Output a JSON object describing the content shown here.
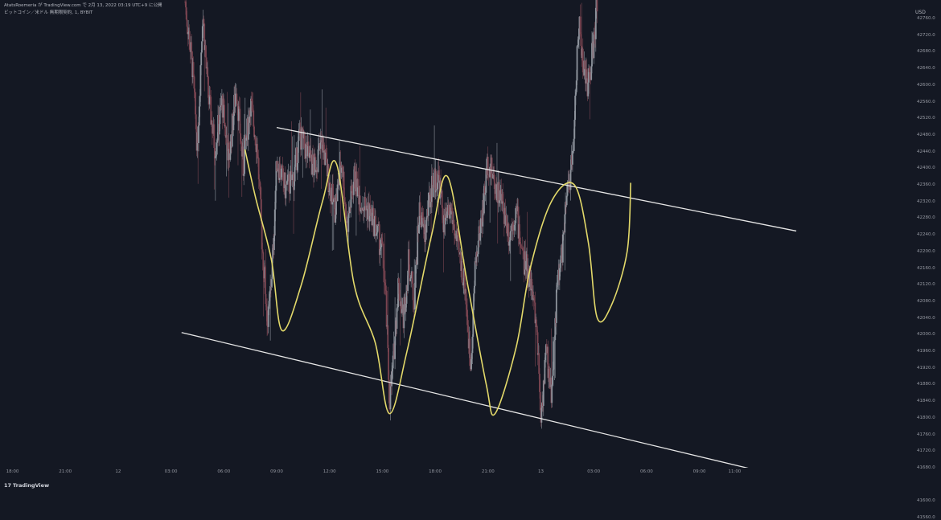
{
  "header": {
    "title_line": "AtatsRoemeria が TradingView.com で 2月 13, 2022 03:19 UTC+9 に公開",
    "symbol_line": "ビットコイン／米ドル 無期限契約, 1, BYBIT"
  },
  "price_unit": "USD",
  "footer": {
    "logo_mark": "17",
    "logo_text": "TradingView"
  },
  "colors": {
    "background": "#141823",
    "up_candle": "#8d939c",
    "down_candle": "#7a4450",
    "trend_line": "#e6e6e6",
    "drawing": "#e3d96a"
  },
  "chart_data": {
    "type": "candlestick",
    "symbol": "BTCUSD perpetual",
    "interval": "1",
    "exchange": "BYBIT",
    "ylim": [
      41540,
      42800
    ],
    "yticks": [
      42760,
      42720,
      42680,
      42640,
      42600,
      42560,
      42520,
      42480,
      42440,
      42400,
      42360,
      42320,
      42280,
      42240,
      42200,
      42160,
      42120,
      42080,
      42040,
      42000,
      41960,
      41920,
      41880,
      41840,
      41800,
      41760,
      41720,
      41680,
      41640,
      41600,
      41560
    ],
    "ytick_labels": [
      "42760.0",
      "42720.0",
      "42680.0",
      "42640.0",
      "42600.0",
      "42560.0",
      "42520.0",
      "42480.0",
      "42440.0",
      "42400.0",
      "42360.0",
      "42320.0",
      "42280.0",
      "42240.0",
      "42200.0",
      "42160.0",
      "42120.0",
      "42080.0",
      "42040.0",
      "42000.0",
      "41960.0",
      "41920.0",
      "41880.0",
      "41840.0",
      "41800.0",
      "41760.0",
      "41720.0",
      "41680.0",
      "41640.0",
      "41600.0",
      "41560.0"
    ],
    "x_ticks": [
      {
        "label": "18:00",
        "t": -15
      },
      {
        "label": "21:00",
        "t": -12
      },
      {
        "label": "12",
        "t": -9
      },
      {
        "label": "03:00",
        "t": -6
      },
      {
        "label": "06:00",
        "t": -3
      },
      {
        "label": "09:00",
        "t": 0
      },
      {
        "label": "12:00",
        "t": 3
      },
      {
        "label": "15:00",
        "t": 6
      },
      {
        "label": "18:00",
        "t": 9
      },
      {
        "label": "21:00",
        "t": 12
      },
      {
        "label": "13",
        "t": 15
      },
      {
        "label": "03:00",
        "t": 18
      },
      {
        "label": "06:00",
        "t": 21
      },
      {
        "label": "09:00",
        "t": 24
      },
      {
        "label": "11:00",
        "t": 26
      }
    ],
    "x_axis_note": "t = hours after 12日 09:00",
    "price_path": [
      {
        "t": -5.2,
        "p": 42800
      },
      {
        "t": -4.8,
        "p": 42650
      },
      {
        "t": -4.5,
        "p": 42450
      },
      {
        "t": -4.2,
        "p": 42780
      },
      {
        "t": -3.9,
        "p": 42580
      },
      {
        "t": -3.5,
        "p": 42450
      },
      {
        "t": -3.1,
        "p": 42560
      },
      {
        "t": -2.7,
        "p": 42420
      },
      {
        "t": -2.3,
        "p": 42600
      },
      {
        "t": -1.9,
        "p": 42400
      },
      {
        "t": -1.5,
        "p": 42560
      },
      {
        "t": -1.1,
        "p": 42450
      },
      {
        "t": -0.8,
        "p": 42200
      },
      {
        "t": -0.5,
        "p": 42020
      },
      {
        "t": -0.2,
        "p": 42200
      },
      {
        "t": 0.0,
        "p": 42420
      },
      {
        "t": 0.5,
        "p": 42350
      },
      {
        "t": 1.0,
        "p": 42380
      },
      {
        "t": 1.3,
        "p": 42480
      },
      {
        "t": 1.7,
        "p": 42440
      },
      {
        "t": 2.1,
        "p": 42400
      },
      {
        "t": 2.6,
        "p": 42460
      },
      {
        "t": 3.0,
        "p": 42360
      },
      {
        "t": 3.3,
        "p": 42300
      },
      {
        "t": 3.7,
        "p": 42420
      },
      {
        "t": 4.0,
        "p": 42260
      },
      {
        "t": 4.4,
        "p": 42380
      },
      {
        "t": 4.8,
        "p": 42320
      },
      {
        "t": 5.2,
        "p": 42300
      },
      {
        "t": 5.6,
        "p": 42260
      },
      {
        "t": 6.0,
        "p": 42200
      },
      {
        "t": 6.2,
        "p": 42080
      },
      {
        "t": 6.4,
        "p": 41840
      },
      {
        "t": 6.6,
        "p": 41920
      },
      {
        "t": 6.9,
        "p": 42120
      },
      {
        "t": 7.2,
        "p": 42040
      },
      {
        "t": 7.5,
        "p": 42180
      },
      {
        "t": 7.8,
        "p": 42080
      },
      {
        "t": 8.1,
        "p": 42300
      },
      {
        "t": 8.4,
        "p": 42240
      },
      {
        "t": 8.8,
        "p": 42360
      },
      {
        "t": 9.2,
        "p": 42380
      },
      {
        "t": 9.5,
        "p": 42260
      },
      {
        "t": 9.9,
        "p": 42300
      },
      {
        "t": 10.3,
        "p": 42200
      },
      {
        "t": 10.7,
        "p": 42120
      },
      {
        "t": 11.0,
        "p": 41920
      },
      {
        "t": 11.3,
        "p": 42180
      },
      {
        "t": 11.7,
        "p": 42300
      },
      {
        "t": 12.0,
        "p": 42420
      },
      {
        "t": 12.4,
        "p": 42360
      },
      {
        "t": 12.8,
        "p": 42320
      },
      {
        "t": 13.2,
        "p": 42240
      },
      {
        "t": 13.6,
        "p": 42300
      },
      {
        "t": 14.0,
        "p": 42180
      },
      {
        "t": 14.4,
        "p": 42140
      },
      {
        "t": 14.8,
        "p": 42000
      },
      {
        "t": 15.0,
        "p": 41800
      },
      {
        "t": 15.3,
        "p": 41960
      },
      {
        "t": 15.6,
        "p": 41860
      },
      {
        "t": 15.9,
        "p": 42100
      },
      {
        "t": 16.2,
        "p": 42200
      },
      {
        "t": 16.5,
        "p": 42340
      },
      {
        "t": 16.8,
        "p": 42420
      },
      {
        "t": 17.0,
        "p": 42620
      },
      {
        "t": 17.2,
        "p": 42760
      },
      {
        "t": 17.4,
        "p": 42640
      },
      {
        "t": 17.7,
        "p": 42600
      },
      {
        "t": 18.0,
        "p": 42700
      },
      {
        "t": 18.2,
        "p": 42800
      }
    ],
    "upper_trend_line": {
      "t0": 0.0,
      "p0": 42498,
      "t1": 29.5,
      "p1": 42249
    },
    "lower_trend_line": {
      "t0": -5.4,
      "p0": 42005,
      "t1": 29.5,
      "p1": 41651
    },
    "drawn_path": [
      {
        "t": -1.8,
        "p": 42445
      },
      {
        "t": -1.2,
        "p": 42330
      },
      {
        "t": -0.3,
        "p": 42180
      },
      {
        "t": 0.3,
        "p": 42010
      },
      {
        "t": 1.4,
        "p": 42120
      },
      {
        "t": 2.6,
        "p": 42320
      },
      {
        "t": 3.4,
        "p": 42410
      },
      {
        "t": 4.4,
        "p": 42120
      },
      {
        "t": 5.6,
        "p": 41980
      },
      {
        "t": 6.4,
        "p": 41810
      },
      {
        "t": 7.4,
        "p": 41960
      },
      {
        "t": 8.8,
        "p": 42240
      },
      {
        "t": 9.7,
        "p": 42380
      },
      {
        "t": 10.8,
        "p": 42130
      },
      {
        "t": 11.9,
        "p": 41880
      },
      {
        "t": 12.4,
        "p": 41810
      },
      {
        "t": 13.6,
        "p": 41970
      },
      {
        "t": 14.4,
        "p": 42160
      },
      {
        "t": 15.6,
        "p": 42320
      },
      {
        "t": 16.9,
        "p": 42360
      },
      {
        "t": 17.7,
        "p": 42220
      },
      {
        "t": 18.2,
        "p": 42040
      },
      {
        "t": 19.0,
        "p": 42070
      },
      {
        "t": 19.9,
        "p": 42200
      },
      {
        "t": 20.1,
        "p": 42365
      }
    ]
  }
}
